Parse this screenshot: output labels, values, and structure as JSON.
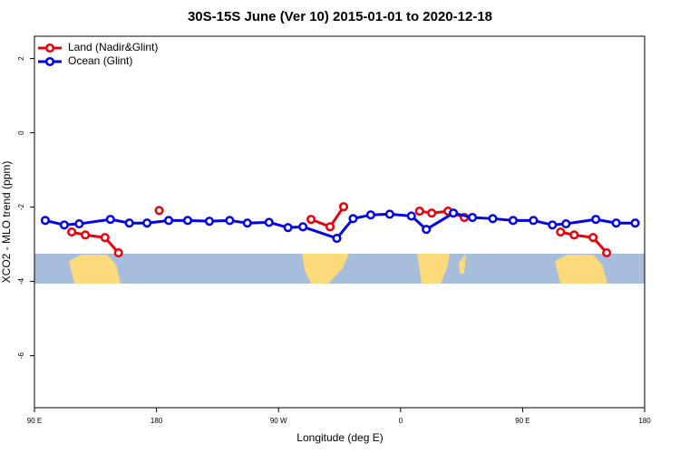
{
  "chart_data": {
    "type": "line",
    "title": "30S-15S June (Ver 10)   2015-01-01 to 2020-12-18",
    "xlabel": "Longitude (deg E)",
    "ylabel": "XCO2 - MLO trend (ppm)",
    "xlim": [
      90,
      540
    ],
    "ylim": [
      -7.4,
      2.6
    ],
    "xticks": [
      {
        "value": 90,
        "label": "90 E"
      },
      180,
      {
        "value": 270,
        "label": "90 W"
      },
      {
        "value": 360,
        "label": "0"
      },
      {
        "value": 450,
        "label": "90 E"
      },
      {
        "value": 540,
        "label": "180"
      }
    ],
    "yticks": [
      -6,
      -4,
      -2,
      0,
      2
    ],
    "legend": "top-left",
    "series": [
      {
        "name": "Land (Nadir&Glint)",
        "color": "#e8000b",
        "x": [
          117.5,
          127.5,
          142,
          152,
          null,
          182,
          null,
          294,
          308,
          318,
          null,
          374,
          383,
          395,
          407,
          null,
          478,
          488,
          502,
          512
        ],
        "values": [
          -2.67,
          -2.75,
          -2.82,
          -3.23,
          null,
          -2.09,
          null,
          -2.33,
          -2.53,
          -1.99,
          null,
          -2.11,
          -2.16,
          -2.11,
          -2.28,
          null,
          -2.67,
          -2.75,
          -2.82,
          -3.23
        ]
      },
      {
        "name": "Ocean (Glint)",
        "color": "#0000e6",
        "x": [
          98,
          112,
          123,
          146,
          160,
          173,
          189,
          203,
          219,
          234,
          247,
          263,
          277,
          288,
          313,
          325,
          338,
          352,
          368,
          379,
          399,
          413,
          428,
          443,
          458,
          472,
          482,
          504,
          519,
          533
        ],
        "values": [
          -2.36,
          -2.48,
          -2.45,
          -2.33,
          -2.43,
          -2.43,
          -2.36,
          -2.36,
          -2.38,
          -2.36,
          -2.43,
          -2.41,
          -2.55,
          -2.53,
          -2.84,
          -2.31,
          -2.21,
          -2.19,
          -2.24,
          -2.6,
          -2.16,
          -2.28,
          -2.31,
          -2.36,
          -2.36,
          -2.48,
          -2.45,
          -2.33,
          -2.43,
          -2.43
        ]
      }
    ]
  }
}
